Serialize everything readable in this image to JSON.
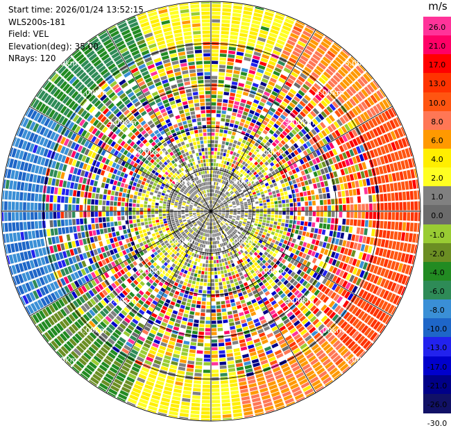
{
  "header": {
    "start_time": "Start time: 2026/01/24 13:52:15",
    "instrument": "WLS200s-181",
    "field": "Field: VEL",
    "elevation": "Elevation(deg): 35.00",
    "nrays": "NRays: 120"
  },
  "colorbar": {
    "unit": "m/s",
    "levels": [
      {
        "label": "26.0",
        "color": "#ff3399"
      },
      {
        "label": "21.0",
        "color": "#ff0066"
      },
      {
        "label": "17.0",
        "color": "#ff0000"
      },
      {
        "label": "13.0",
        "color": "#ff3300"
      },
      {
        "label": "10.0",
        "color": "#ff5511"
      },
      {
        "label": "8.0",
        "color": "#ff7755"
      },
      {
        "label": "6.0",
        "color": "#ff9900"
      },
      {
        "label": "4.0",
        "color": "#ffee00"
      },
      {
        "label": "2.0",
        "color": "#ffff22"
      },
      {
        "label": "1.0",
        "color": "#808080"
      },
      {
        "label": "0.0",
        "color": "#6b6b6b"
      },
      {
        "label": "-1.0",
        "color": "#99cc33"
      },
      {
        "label": "-2.0",
        "color": "#6b8e23"
      },
      {
        "label": "-4.0",
        "color": "#228b22"
      },
      {
        "label": "-6.0",
        "color": "#2e8b57"
      },
      {
        "label": "-8.0",
        "color": "#3a8fd6"
      },
      {
        "label": "-10.0",
        "color": "#1e66c8"
      },
      {
        "label": "-13.0",
        "color": "#2222ee"
      },
      {
        "label": "-17.0",
        "color": "#0000cc"
      },
      {
        "label": "-21.0",
        "color": "#000088"
      },
      {
        "label": "-26.0",
        "color": "#111166"
      },
      {
        "label": "-30.0",
        "color": ""
      }
    ]
  },
  "chart_data": {
    "type": "heatmap",
    "subtype": "polar-ppi",
    "field": "VEL",
    "nrays": 120,
    "elevation_deg": 35.0,
    "range_rings_km": [
      1.0,
      2.0,
      3.0,
      4.0,
      5.0
    ],
    "ring_labels": [
      "1.00km",
      "2.00km",
      "3.00km",
      "4.00km",
      "5.00km"
    ],
    "max_range_km": 5.0,
    "color_scale_min": -30.0,
    "color_scale_max": 26.0,
    "description_of_pattern": {
      "north_far_range": "yellow / green",
      "east_far_range": "orange / red",
      "south_far_range": "yellow / orange / green",
      "west_far_range": "blue / green",
      "mid_range": "mixed noisy bins (all colors)",
      "inner_1km": "gray with sparse yellow"
    }
  }
}
